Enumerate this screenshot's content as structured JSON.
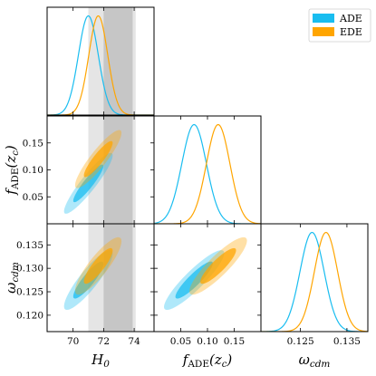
{
  "chart_data": {
    "type": "triangle",
    "parameters": [
      {
        "key": "H0",
        "label": "H",
        "subscript": "0",
        "range": [
          68.3,
          75.3
        ],
        "ticks": [
          70,
          72,
          74
        ]
      },
      {
        "key": "fADE",
        "label": "f",
        "subscript": "ADE",
        "suffix": "(z_c)",
        "range": [
          0,
          0.2
        ],
        "ticks": [
          0.05,
          0.1,
          0.15
        ]
      },
      {
        "key": "wcdm",
        "label": "ω",
        "subscript": "cdm",
        "range": [
          0.1165,
          0.1395
        ],
        "ticks": [
          0.12,
          0.125,
          0.13,
          0.135
        ]
      }
    ],
    "xtick_labels": {
      "H0": [
        "70",
        "72",
        "74"
      ],
      "fADE": [
        "0.05",
        "0.10",
        "0.15"
      ],
      "wcdm": [
        "0.125",
        "0.135"
      ]
    },
    "xtick_values": {
      "wcdm": [
        0.125,
        0.135
      ]
    },
    "ytick_labels": {
      "fADE": [
        "0.05",
        "0.10",
        "0.15"
      ],
      "wcdm": [
        "0.120",
        "0.125",
        "0.130",
        "0.135"
      ]
    },
    "x_axis_labels": [
      "H_0",
      "f_ADE(z_c)",
      "ω_cdm"
    ],
    "y_axis_labels": [
      "f_ADE(z_c)",
      "ω_cdm"
    ],
    "bands": [
      {
        "param": "H0",
        "range": [
          71.0,
          74.1
        ],
        "color": "#b4b4b4",
        "opacity": 0.35
      },
      {
        "param": "H0",
        "range": [
          72.0,
          73.9
        ],
        "color": "#a0a0a0",
        "opacity": 0.45
      }
    ],
    "series": [
      {
        "name": "ADE",
        "color": "#19bdf0",
        "means": {
          "H0": 71.0,
          "fADE": 0.075,
          "wcdm": 0.1275
        },
        "sigmas": {
          "H0": 0.65,
          "fADE": 0.023,
          "wcdm": 0.0026
        },
        "corr": {
          "H0_fADE": 0.92,
          "H0_wcdm": 0.88,
          "fADE_wcdm": 0.9
        }
      },
      {
        "name": "EDE",
        "color": "#ffa500",
        "means": {
          "H0": 71.65,
          "fADE": 0.12,
          "wcdm": 0.1305
        },
        "sigmas": {
          "H0": 0.62,
          "fADE": 0.022,
          "wcdm": 0.0025
        },
        "corr": {
          "H0_fADE": 0.9,
          "H0_wcdm": 0.86,
          "fADE_wcdm": 0.88
        }
      }
    ]
  },
  "legend": {
    "items": [
      {
        "label": "ADE",
        "color": "#19bdf0"
      },
      {
        "label": "EDE",
        "color": "#ffa500"
      }
    ]
  }
}
